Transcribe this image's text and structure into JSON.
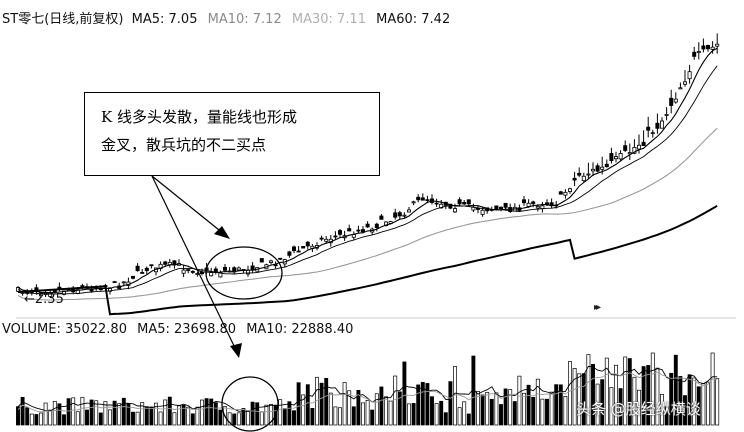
{
  "header": {
    "stock": "ST零七(日线,前复权)",
    "ma5": "MA5: 7.05",
    "ma10": "MA10: 7.12",
    "ma30": "MA30: 7.11",
    "ma60": "MA60: 7.42"
  },
  "volume_header": {
    "volume": "VOLUME: 35022.80",
    "ma5": "MA5: 23698.80",
    "ma10": "MA10: 22888.40"
  },
  "annotation": {
    "line1": "K  线多头发散，量能线也形成",
    "line2": "金叉，散兵坑的不二买点"
  },
  "low_marker": "←2.35",
  "skip_icon": "▸▸",
  "watermark": "头条 @股经纵横谈",
  "colors": {
    "line": "#000000",
    "ma_gray": "#9a9a9a",
    "ma_light": "#c8c8c8",
    "up_fill": "#ffffff",
    "down_fill": "#000000"
  },
  "chart_data": [
    {
      "type": "candlestick",
      "title": "ST零七(日线,前复权)",
      "low_label": "2.35",
      "approx_price_range": [
        2.35,
        7.6
      ],
      "series": [
        {
          "name": "MA5",
          "value": 7.05
        },
        {
          "name": "MA10",
          "value": 7.12
        },
        {
          "name": "MA30",
          "value": 7.11
        },
        {
          "name": "MA60",
          "value": 7.42
        }
      ],
      "annotations": [
        "K  线多头发散，量能线也形成",
        "金叉，散兵坑的不二买点"
      ]
    },
    {
      "type": "bar",
      "title": "VOLUME",
      "series": [
        {
          "name": "VOLUME",
          "value": 35022.8
        },
        {
          "name": "MA5",
          "value": 23698.8
        },
        {
          "name": "MA10",
          "value": 22888.4
        }
      ]
    }
  ]
}
